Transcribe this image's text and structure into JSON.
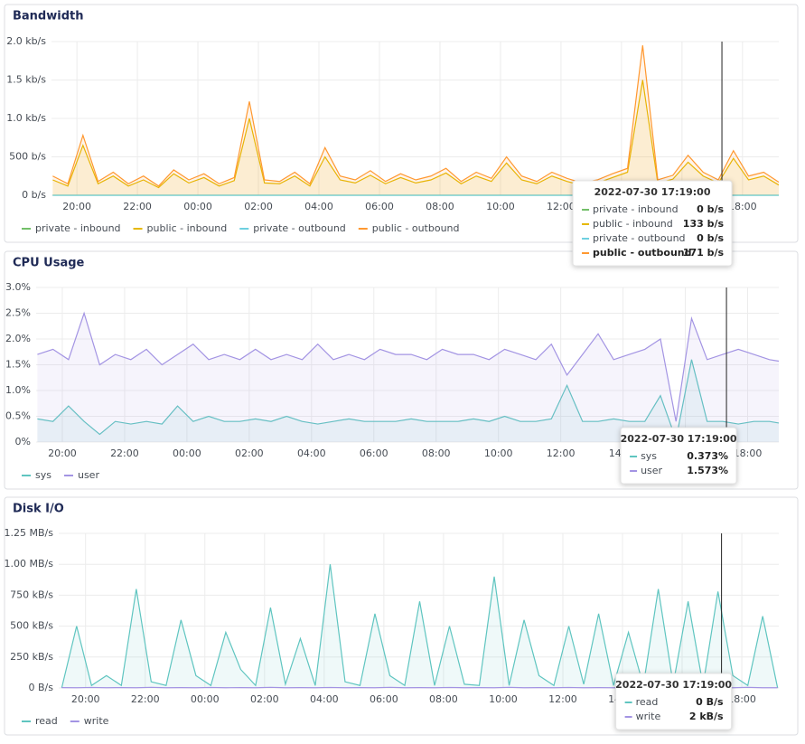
{
  "chart_data": [
    {
      "type": "line",
      "title": "Bandwidth",
      "x": [
        19.2,
        19.7,
        20.2,
        20.7,
        21.2,
        21.7,
        22.2,
        22.7,
        23.2,
        23.7,
        24.2,
        24.7,
        25.2,
        25.7,
        26.2,
        26.7,
        27.2,
        27.7,
        28.2,
        28.7,
        29.2,
        29.7,
        30.2,
        30.7,
        31.2,
        31.7,
        32.2,
        32.7,
        33.2,
        33.7,
        34.2,
        34.7,
        35.2,
        35.7,
        36.2,
        36.7,
        37.2,
        37.7,
        38.2,
        38.7,
        39.2,
        39.7,
        40.2,
        40.7,
        41.2,
        41.7,
        42.2,
        42.7,
        43.2
      ],
      "xlim": [
        19.16,
        43.2
      ],
      "xticks": [
        {
          "value": 20,
          "label": "20:00"
        },
        {
          "value": 22,
          "label": "22:00"
        },
        {
          "value": 24,
          "label": "00:00"
        },
        {
          "value": 26,
          "label": "02:00"
        },
        {
          "value": 28,
          "label": "04:00"
        },
        {
          "value": 30,
          "label": "06:00"
        },
        {
          "value": 32,
          "label": "08:00"
        },
        {
          "value": 34,
          "label": "10:00"
        },
        {
          "value": 36,
          "label": "12:00"
        },
        {
          "value": 38,
          "label": "14:00"
        },
        {
          "value": 40,
          "label": "16:00"
        },
        {
          "value": 42,
          "label": "18:00"
        }
      ],
      "ylim": [
        0,
        2000
      ],
      "yticks": [
        {
          "value": 0,
          "label": "0 b/s"
        },
        {
          "value": 500,
          "label": "500 b/s"
        },
        {
          "value": 1000,
          "label": "1.0 kb/s"
        },
        {
          "value": 1500,
          "label": "1.5 kb/s"
        },
        {
          "value": 2000,
          "label": "2.0 kb/s"
        }
      ],
      "grid": true,
      "cursor": 41.32,
      "series": [
        {
          "name": "private - inbound",
          "color": "#73bf69",
          "values": [
            0,
            0,
            0,
            0,
            0,
            0,
            0,
            0,
            0,
            0,
            0,
            0,
            0,
            0,
            0,
            0,
            0,
            0,
            0,
            0,
            0,
            0,
            0,
            0,
            0,
            0,
            0,
            0,
            0,
            0,
            0,
            0,
            0,
            0,
            0,
            0,
            0,
            0,
            0,
            0,
            0,
            0,
            0,
            0,
            0,
            0,
            0,
            0,
            0
          ]
        },
        {
          "name": "public - inbound",
          "color": "#e6b800",
          "values": [
            200,
            120,
            650,
            150,
            250,
            120,
            200,
            100,
            280,
            160,
            230,
            120,
            190,
            1000,
            160,
            150,
            250,
            120,
            500,
            200,
            160,
            260,
            150,
            230,
            160,
            200,
            290,
            150,
            250,
            180,
            420,
            200,
            150,
            250,
            180,
            130,
            160,
            230,
            300,
            1500,
            160,
            210,
            430,
            250,
            160,
            480,
            200,
            250,
            133
          ]
        },
        {
          "name": "private - outbound",
          "color": "#6ed0e0",
          "values": [
            0,
            0,
            0,
            0,
            0,
            0,
            0,
            0,
            0,
            0,
            0,
            0,
            0,
            0,
            0,
            0,
            0,
            0,
            0,
            0,
            0,
            0,
            0,
            0,
            0,
            0,
            0,
            0,
            0,
            0,
            0,
            0,
            0,
            0,
            0,
            0,
            0,
            0,
            0,
            0,
            0,
            0,
            0,
            0,
            0,
            0,
            0,
            0,
            0
          ]
        },
        {
          "name": "public - outbound",
          "color": "#ff9830",
          "values": [
            250,
            150,
            780,
            180,
            300,
            150,
            250,
            120,
            330,
            200,
            280,
            150,
            230,
            1220,
            200,
            180,
            300,
            150,
            620,
            250,
            200,
            320,
            180,
            280,
            200,
            250,
            350,
            180,
            300,
            220,
            500,
            250,
            180,
            300,
            220,
            160,
            200,
            280,
            350,
            1950,
            200,
            260,
            520,
            300,
            200,
            580,
            250,
            300,
            171
          ]
        }
      ],
      "tooltip": {
        "title": "2022-07-30 17:19:00",
        "values": [
          0,
          133,
          0,
          171
        ],
        "value_labels": [
          "0 b/s",
          "133 b/s",
          "0 b/s",
          "171 b/s"
        ],
        "highlight": 3
      }
    },
    {
      "type": "line",
      "title": "CPU Usage",
      "x": [
        19.2,
        19.7,
        20.2,
        20.7,
        21.2,
        21.7,
        22.2,
        22.7,
        23.2,
        23.7,
        24.2,
        24.7,
        25.2,
        25.7,
        26.2,
        26.7,
        27.2,
        27.7,
        28.2,
        28.7,
        29.2,
        29.7,
        30.2,
        30.7,
        31.2,
        31.7,
        32.2,
        32.7,
        33.2,
        33.7,
        34.2,
        34.7,
        35.2,
        35.7,
        36.2,
        36.7,
        37.2,
        37.7,
        38.2,
        38.7,
        39.2,
        39.7,
        40.2,
        40.7,
        41.2,
        41.7,
        42.2,
        42.7,
        43.0
      ],
      "xlim": [
        19.16,
        43.0
      ],
      "xticks": [
        {
          "value": 20,
          "label": "20:00"
        },
        {
          "value": 22,
          "label": "22:00"
        },
        {
          "value": 24,
          "label": "00:00"
        },
        {
          "value": 26,
          "label": "02:00"
        },
        {
          "value": 28,
          "label": "04:00"
        },
        {
          "value": 30,
          "label": "06:00"
        },
        {
          "value": 32,
          "label": "08:00"
        },
        {
          "value": 34,
          "label": "10:00"
        },
        {
          "value": 36,
          "label": "12:00"
        },
        {
          "value": 38,
          "label": "14:00"
        },
        {
          "value": 40,
          "label": "16:00"
        },
        {
          "value": 42,
          "label": "18:00"
        }
      ],
      "ylim": [
        0,
        3
      ],
      "yticks": [
        {
          "value": 0,
          "label": "0%"
        },
        {
          "value": 0.5,
          "label": "0.5%"
        },
        {
          "value": 1,
          "label": "1.0%"
        },
        {
          "value": 1.5,
          "label": "1.5%"
        },
        {
          "value": 2,
          "label": "2.0%"
        },
        {
          "value": 2.5,
          "label": "2.5%"
        },
        {
          "value": 3,
          "label": "3.0%"
        }
      ],
      "grid": true,
      "cursor": 41.32,
      "series": [
        {
          "name": "sys",
          "color": "#5fc5c0",
          "values": [
            0.45,
            0.4,
            0.7,
            0.4,
            0.15,
            0.4,
            0.35,
            0.4,
            0.35,
            0.7,
            0.4,
            0.5,
            0.4,
            0.4,
            0.45,
            0.4,
            0.5,
            0.4,
            0.35,
            0.4,
            0.45,
            0.4,
            0.4,
            0.4,
            0.45,
            0.4,
            0.4,
            0.4,
            0.45,
            0.4,
            0.5,
            0.4,
            0.4,
            0.45,
            1.1,
            0.4,
            0.4,
            0.45,
            0.4,
            0.4,
            0.9,
            0.05,
            1.6,
            0.4,
            0.4,
            0.35,
            0.4,
            0.4,
            0.37
          ]
        },
        {
          "name": "user",
          "color": "#a394e3",
          "values": [
            1.7,
            1.8,
            1.6,
            2.5,
            1.5,
            1.7,
            1.6,
            1.8,
            1.5,
            1.7,
            1.9,
            1.6,
            1.7,
            1.6,
            1.8,
            1.6,
            1.7,
            1.6,
            1.9,
            1.6,
            1.7,
            1.6,
            1.8,
            1.7,
            1.7,
            1.6,
            1.8,
            1.7,
            1.7,
            1.6,
            1.8,
            1.7,
            1.6,
            1.9,
            1.3,
            1.7,
            2.1,
            1.6,
            1.7,
            1.8,
            2.0,
            0.4,
            2.4,
            1.6,
            1.7,
            1.8,
            1.7,
            1.6,
            1.57
          ]
        }
      ],
      "tooltip": {
        "title": "2022-07-30 17:19:00",
        "values": [
          0.373,
          1.573
        ],
        "value_labels": [
          "0.373%",
          "1.573%"
        ]
      }
    },
    {
      "type": "line",
      "title": "Disk I/O",
      "x": [
        19.2,
        19.7,
        20.2,
        20.7,
        21.2,
        21.7,
        22.2,
        22.7,
        23.2,
        23.7,
        24.2,
        24.7,
        25.2,
        25.7,
        26.2,
        26.7,
        27.2,
        27.7,
        28.2,
        28.7,
        29.2,
        29.7,
        30.2,
        30.7,
        31.2,
        31.7,
        32.2,
        32.7,
        33.2,
        33.7,
        34.2,
        34.7,
        35.2,
        35.7,
        36.2,
        36.7,
        37.2,
        37.7,
        38.2,
        38.7,
        39.2,
        39.7,
        40.2,
        40.7,
        41.2,
        41.7,
        42.2,
        42.7,
        43.2
      ],
      "xlim": [
        19.1,
        43.24
      ],
      "xticks": [
        {
          "value": 20,
          "label": "20:00"
        },
        {
          "value": 22,
          "label": "22:00"
        },
        {
          "value": 24,
          "label": "00:00"
        },
        {
          "value": 26,
          "label": "02:00"
        },
        {
          "value": 28,
          "label": "04:00"
        },
        {
          "value": 30,
          "label": "06:00"
        },
        {
          "value": 32,
          "label": "08:00"
        },
        {
          "value": 34,
          "label": "10:00"
        },
        {
          "value": 36,
          "label": "12:00"
        },
        {
          "value": 38,
          "label": "14:00"
        },
        {
          "value": 40,
          "label": "16:00"
        },
        {
          "value": 42,
          "label": "18:00"
        }
      ],
      "ylim": [
        0,
        1250000
      ],
      "yticks": [
        {
          "value": 0,
          "label": "0 B/s"
        },
        {
          "value": 250000,
          "label": "250 kB/s"
        },
        {
          "value": 500000,
          "label": "500 kB/s"
        },
        {
          "value": 750000,
          "label": "750 kB/s"
        },
        {
          "value": 1000000,
          "label": "1.00 MB/s"
        },
        {
          "value": 1250000,
          "label": "1.25 MB/s"
        }
      ],
      "grid": true,
      "cursor": 41.32,
      "series": [
        {
          "name": "read",
          "color": "#5fc5c0",
          "values": [
            0,
            500000,
            20000,
            100000,
            20000,
            800000,
            50000,
            20000,
            550000,
            100000,
            20000,
            450000,
            150000,
            20000,
            650000,
            30000,
            400000,
            20000,
            1000000,
            50000,
            20000,
            600000,
            100000,
            20000,
            700000,
            20000,
            500000,
            30000,
            20000,
            900000,
            20000,
            550000,
            100000,
            20000,
            500000,
            30000,
            600000,
            20000,
            450000,
            20000,
            800000,
            30000,
            700000,
            20000,
            780000,
            100000,
            20000,
            580000,
            0
          ]
        },
        {
          "name": "write",
          "color": "#a394e3",
          "values": [
            3000,
            2000,
            4000,
            2000,
            3000,
            2000,
            5000,
            2000,
            3000,
            2000,
            4000,
            2000,
            3000,
            2000,
            5000,
            2000,
            3000,
            2000,
            4000,
            2000,
            3000,
            2000,
            5000,
            2000,
            3000,
            2000,
            4000,
            2000,
            3000,
            2000,
            5000,
            2000,
            3000,
            2000,
            4000,
            2000,
            3000,
            2000,
            5000,
            2000,
            3000,
            2000,
            4000,
            2000,
            3000,
            2000,
            5000,
            2000,
            2000
          ]
        }
      ],
      "tooltip": {
        "title": "2022-07-30 17:19:00",
        "values": [
          0,
          2000
        ],
        "value_labels": [
          "0 B/s",
          "2 kB/s"
        ]
      }
    }
  ]
}
